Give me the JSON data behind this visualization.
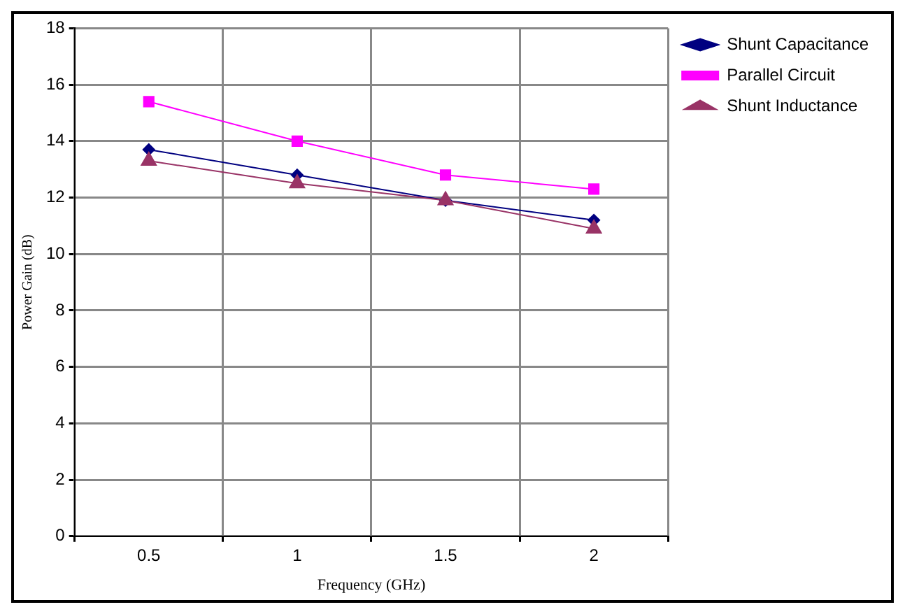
{
  "chart_data": {
    "type": "line",
    "xlabel": "Frequency (GHz)",
    "ylabel": "Power Gain (dB)",
    "categories": [
      "0.5",
      "1",
      "1.5",
      "2"
    ],
    "ylim": [
      0,
      18
    ],
    "yticks": [
      0,
      2,
      4,
      6,
      8,
      10,
      12,
      14,
      16,
      18
    ],
    "grid": true,
    "legend": "top right",
    "line_style": "solid",
    "series": [
      {
        "name": "Shunt Capacitance",
        "color": "#000080",
        "marker": "diamond",
        "values": [
          13.7,
          12.8,
          11.9,
          11.2
        ]
      },
      {
        "name": "Parallel Circuit",
        "color": "#ff00ff",
        "marker": "square",
        "values": [
          15.4,
          14.0,
          12.8,
          12.3
        ]
      },
      {
        "name": "Shunt Inductance",
        "color": "#993366",
        "marker": "triangle",
        "values": [
          13.3,
          12.5,
          11.9,
          10.9
        ]
      }
    ]
  }
}
